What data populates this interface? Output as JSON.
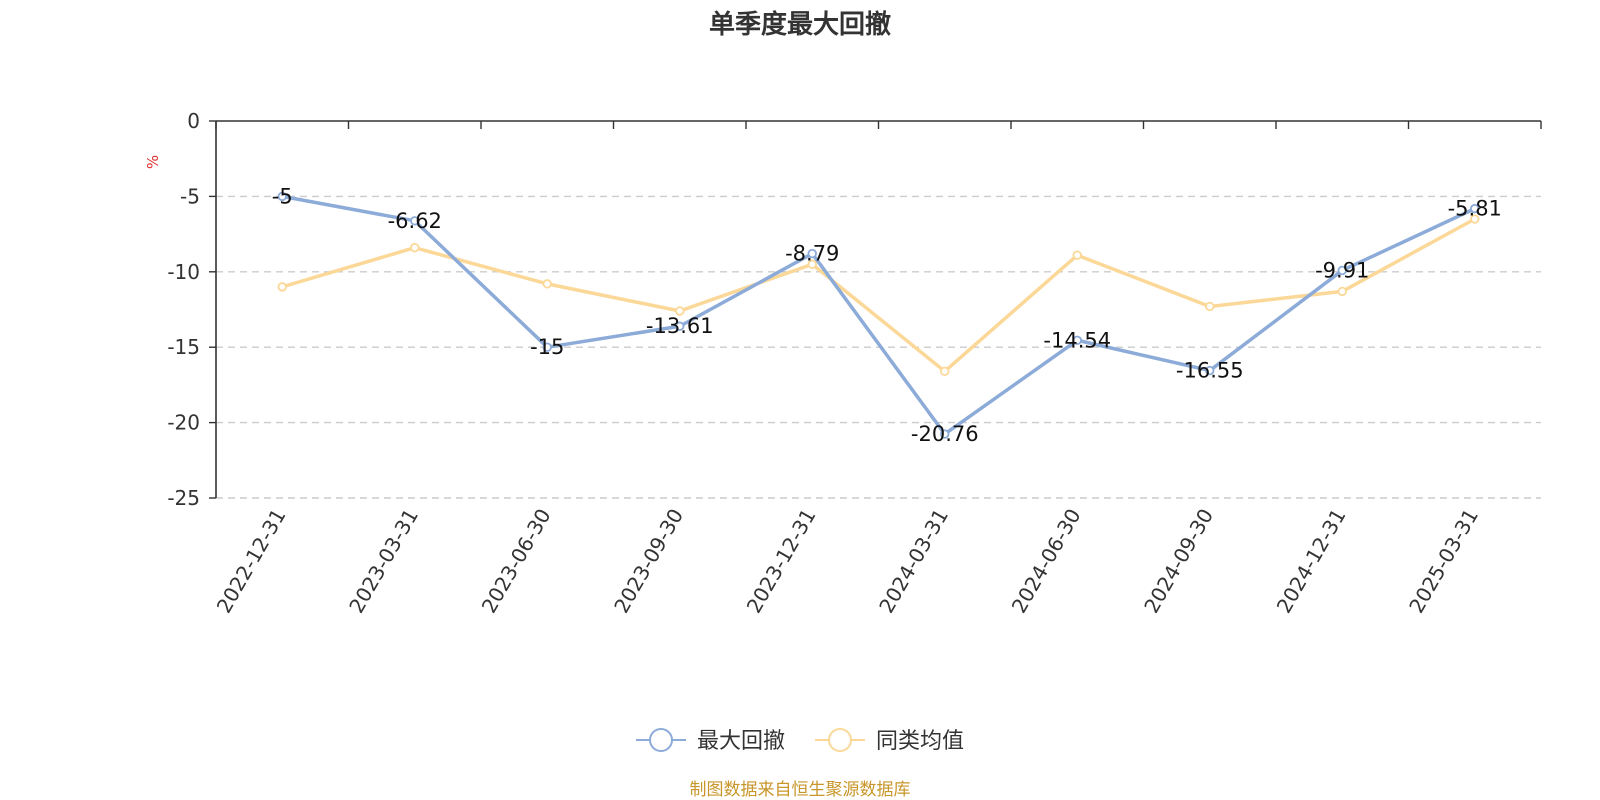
{
  "chart_data": {
    "type": "line",
    "title": "单季度最大回撤",
    "ylabel": "%",
    "categories": [
      "2022-12-31",
      "2023-03-31",
      "2023-06-30",
      "2023-09-30",
      "2023-12-31",
      "2024-03-31",
      "2024-06-30",
      "2024-09-30",
      "2024-12-31",
      "2025-03-31"
    ],
    "series": [
      {
        "name": "最大回撤",
        "color": "#8dabd8",
        "values": [
          -5,
          -6.62,
          -15,
          -13.61,
          -8.79,
          -20.76,
          -14.54,
          -16.55,
          -9.91,
          -5.81
        ],
        "labels": [
          "-5",
          "-6.62",
          "-15",
          "-13.61",
          "-8.79",
          "-20.76",
          "-14.54",
          "-16.55",
          "-9.91",
          "-5.81"
        ]
      },
      {
        "name": "同类均值",
        "color": "#fbd898",
        "values": [
          -11.0,
          -8.4,
          -10.8,
          -12.6,
          -9.5,
          -16.6,
          -8.9,
          -12.3,
          -11.3,
          -6.5
        ]
      }
    ],
    "ylim": [
      -25,
      0
    ],
    "yticks": [
      0,
      -5,
      -10,
      -15,
      -20,
      -25
    ],
    "ytick_labels": [
      "0",
      "-5",
      "-10",
      "-15",
      "-20",
      "-25"
    ],
    "grid": true,
    "legend": "bottom-center",
    "source": "制图数据来自恒生聚源数据库",
    "colors": {
      "axis": "#333333",
      "grid": "#cccccc",
      "unit": "#e03030",
      "source": "#c8962a"
    }
  }
}
